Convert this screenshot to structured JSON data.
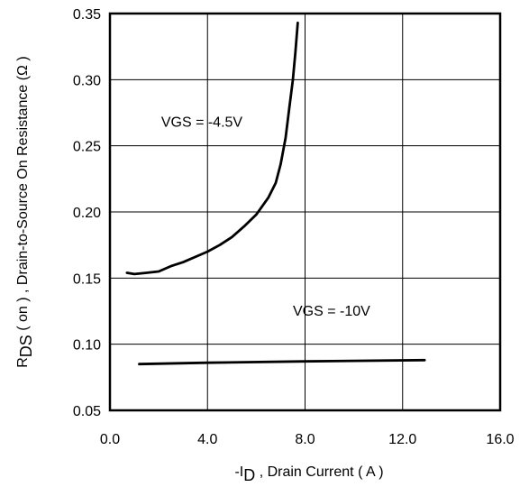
{
  "chart_data": {
    "type": "line",
    "title": "",
    "xlabel": {
      "prefix": "-I",
      "subscript": "D",
      "suffix": " , Drain Current ( A )"
    },
    "ylabel": {
      "prefix": "R",
      "subscript": "DS",
      "suffix": " ( on ) , Drain-to-Source On Resistance (Ω )"
    },
    "xlim": [
      0,
      16
    ],
    "ylim": [
      0.05,
      0.35
    ],
    "xticks": [
      "0.0",
      "4.0",
      "8.0",
      "12.0",
      "16.0"
    ],
    "yticks": [
      "0.05",
      "0.10",
      "0.15",
      "0.20",
      "0.25",
      "0.30",
      "0.35"
    ],
    "grid": true,
    "legend": "none",
    "series": [
      {
        "label": "VGS = -4.5V",
        "label_at": [
          2.1,
          0.2645
        ],
        "color": "#000000",
        "points": [
          [
            0.7,
            0.154
          ],
          [
            1.0,
            0.153
          ],
          [
            1.5,
            0.154
          ],
          [
            2.0,
            0.155
          ],
          [
            2.5,
            0.159
          ],
          [
            3.0,
            0.162
          ],
          [
            3.5,
            0.166
          ],
          [
            4.0,
            0.17
          ],
          [
            4.5,
            0.175
          ],
          [
            5.0,
            0.181
          ],
          [
            5.5,
            0.189
          ],
          [
            6.0,
            0.198
          ],
          [
            6.5,
            0.211
          ],
          [
            6.8,
            0.222
          ],
          [
            7.0,
            0.236
          ],
          [
            7.2,
            0.256
          ],
          [
            7.35,
            0.278
          ],
          [
            7.5,
            0.3
          ],
          [
            7.6,
            0.32
          ],
          [
            7.7,
            0.343
          ]
        ]
      },
      {
        "label": "VGS = -10V",
        "label_at": [
          7.5,
          0.1215
        ],
        "color": "#000000",
        "points": [
          [
            1.2,
            0.085
          ],
          [
            4.0,
            0.086
          ],
          [
            8.0,
            0.087
          ],
          [
            12.9,
            0.088
          ]
        ]
      }
    ]
  }
}
